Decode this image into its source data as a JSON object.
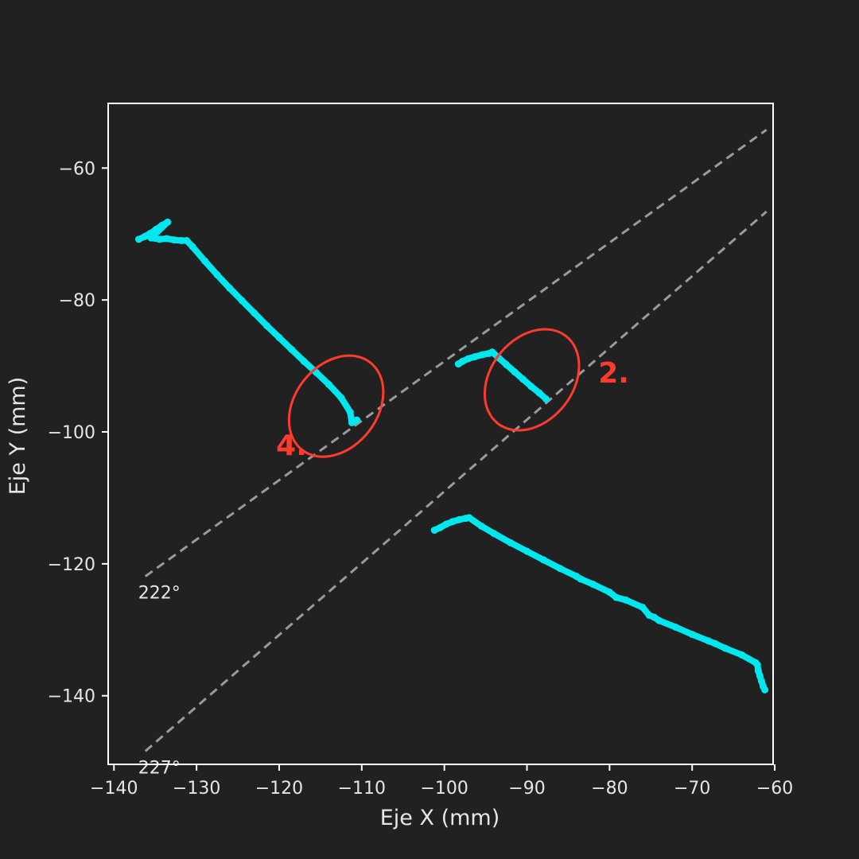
{
  "chart_data": {
    "type": "scatter",
    "xlabel": "Eje X (mm)",
    "ylabel": "Eje Y (mm)",
    "xlim": [
      -140.7,
      -60.2
    ],
    "ylim": [
      -150.4,
      -50.2
    ],
    "x_ticks": [
      -140,
      -130,
      -120,
      -110,
      -100,
      -90,
      -80,
      -70,
      -60
    ],
    "y_ticks": [
      -60,
      -80,
      -100,
      -120,
      -140
    ],
    "grid": false,
    "colors": {
      "background": "#212121",
      "frame": "#ffffff",
      "points": "#00e8ee",
      "reference_line": "#9a9a9a",
      "annotation": "#ff3b30"
    },
    "series": [
      {
        "points": [
          [
            -137.0,
            -70.8
          ],
          [
            -136.3,
            -70.4
          ],
          [
            -135.6,
            -69.9
          ],
          [
            -134.9,
            -69.3
          ],
          [
            -134.2,
            -68.7
          ],
          [
            -133.5,
            -68.2
          ],
          [
            -135.5,
            -70.6
          ],
          [
            -134.5,
            -70.8
          ],
          [
            -133.6,
            -70.7
          ],
          [
            -132.7,
            -70.9
          ],
          [
            -131.8,
            -71.0
          ],
          [
            -131.2,
            -71.0
          ],
          [
            -130.5,
            -71.9
          ],
          [
            -129.0,
            -74.1
          ],
          [
            -127.5,
            -76.2
          ],
          [
            -126.0,
            -78.2
          ],
          [
            -124.5,
            -80.1
          ],
          [
            -123.0,
            -82.0
          ],
          [
            -121.5,
            -83.9
          ],
          [
            -120.0,
            -85.7
          ],
          [
            -118.5,
            -87.5
          ],
          [
            -117.0,
            -89.3
          ],
          [
            -115.5,
            -91.0
          ],
          [
            -114.0,
            -92.8
          ],
          [
            -112.5,
            -94.8
          ],
          [
            -111.4,
            -97.0
          ],
          [
            -111.2,
            -98.6
          ],
          [
            -110.6,
            -98.2
          ]
        ]
      },
      {
        "points": [
          [
            -98.3,
            -89.7
          ],
          [
            -97.8,
            -89.3
          ],
          [
            -97.1,
            -88.9
          ],
          [
            -96.3,
            -88.6
          ],
          [
            -95.4,
            -88.3
          ],
          [
            -94.6,
            -88.1
          ],
          [
            -94.2,
            -87.9
          ],
          [
            -93.4,
            -88.8
          ],
          [
            -92.5,
            -89.8
          ],
          [
            -91.5,
            -90.9
          ],
          [
            -90.5,
            -92.0
          ],
          [
            -89.5,
            -93.1
          ],
          [
            -88.5,
            -94.1
          ],
          [
            -87.7,
            -95.0
          ]
        ]
      },
      {
        "points": [
          [
            -101.2,
            -114.9
          ],
          [
            -100.5,
            -114.5
          ],
          [
            -99.8,
            -114.0
          ],
          [
            -99.0,
            -113.6
          ],
          [
            -98.2,
            -113.3
          ],
          [
            -97.4,
            -113.1
          ],
          [
            -97.0,
            -113.0
          ],
          [
            -95.5,
            -114.3
          ],
          [
            -94.0,
            -115.4
          ],
          [
            -92.0,
            -116.8
          ],
          [
            -90.0,
            -118.1
          ],
          [
            -88.0,
            -119.4
          ],
          [
            -86.0,
            -120.7
          ],
          [
            -84.0,
            -121.9
          ],
          [
            -83.5,
            -122.3
          ],
          [
            -82.0,
            -123.1
          ],
          [
            -80.0,
            -124.3
          ],
          [
            -79.2,
            -125.1
          ],
          [
            -78.0,
            -125.5
          ],
          [
            -76.0,
            -126.6
          ],
          [
            -75.2,
            -127.8
          ],
          [
            -74.6,
            -128.1
          ],
          [
            -74.0,
            -128.6
          ],
          [
            -72.0,
            -129.6
          ],
          [
            -70.0,
            -130.7
          ],
          [
            -68.0,
            -131.7
          ],
          [
            -67.2,
            -132.1
          ],
          [
            -66.0,
            -132.8
          ],
          [
            -64.0,
            -133.8
          ],
          [
            -62.3,
            -135.0
          ],
          [
            -62.1,
            -135.3
          ],
          [
            -62.0,
            -136.2
          ],
          [
            -61.8,
            -137.0
          ],
          [
            -61.6,
            -137.8
          ],
          [
            -61.4,
            -138.6
          ],
          [
            -61.2,
            -139.1
          ]
        ]
      }
    ],
    "reference_lines": [
      {
        "label": "222°",
        "from": [
          -136.2,
          -121.9
        ],
        "to": [
          -61.0,
          -54.2
        ]
      },
      {
        "label": "227°",
        "from": [
          -136.2,
          -148.4
        ],
        "to": [
          -61.0,
          -66.6
        ]
      }
    ],
    "annotations": [
      {
        "text": "4.",
        "ellipse_center": [
          -113.1,
          -96.1
        ],
        "ellipse_radii": [
          5.0,
          8.4
        ],
        "ellipse_rotation": 38,
        "text_anchor": [
          -118.5,
          -103.5
        ]
      },
      {
        "text": "2.",
        "ellipse_center": [
          -89.4,
          -92.1
        ],
        "ellipse_radii": [
          5.0,
          8.4
        ],
        "ellipse_rotation": 38,
        "text_anchor": [
          -79.5,
          -92.5
        ]
      }
    ]
  }
}
